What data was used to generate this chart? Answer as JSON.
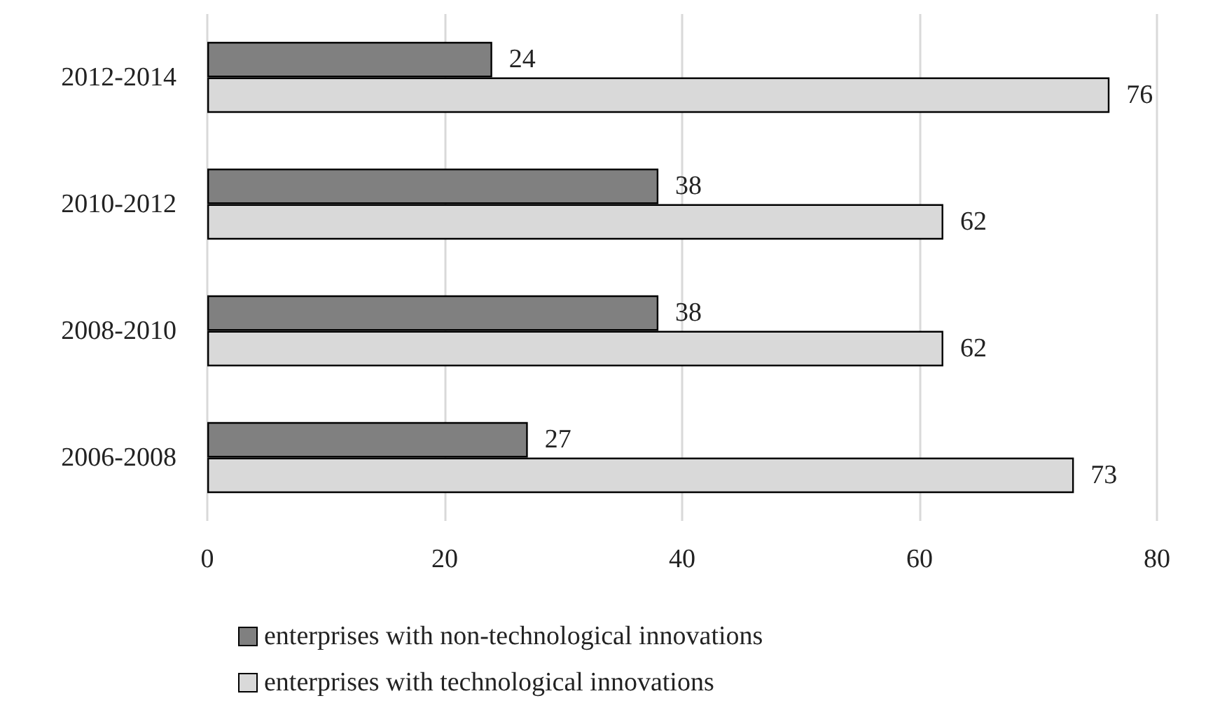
{
  "chart_data": {
    "type": "bar",
    "orientation": "horizontal",
    "categories": [
      "2012-2014",
      "2010-2012",
      "2008-2010",
      "2006-2008"
    ],
    "series": [
      {
        "name": "enterprises with non-technological innovations",
        "color": "#808080",
        "values": [
          24,
          38,
          38,
          27
        ]
      },
      {
        "name": "enterprises with technological innovations",
        "color": "#d9d9d9",
        "values": [
          76,
          62,
          62,
          73
        ]
      }
    ],
    "xlim": [
      0,
      80
    ],
    "xticks": [
      0,
      20,
      40,
      60,
      80
    ],
    "grid": "x",
    "legend": "bottom",
    "data_labels": true
  }
}
